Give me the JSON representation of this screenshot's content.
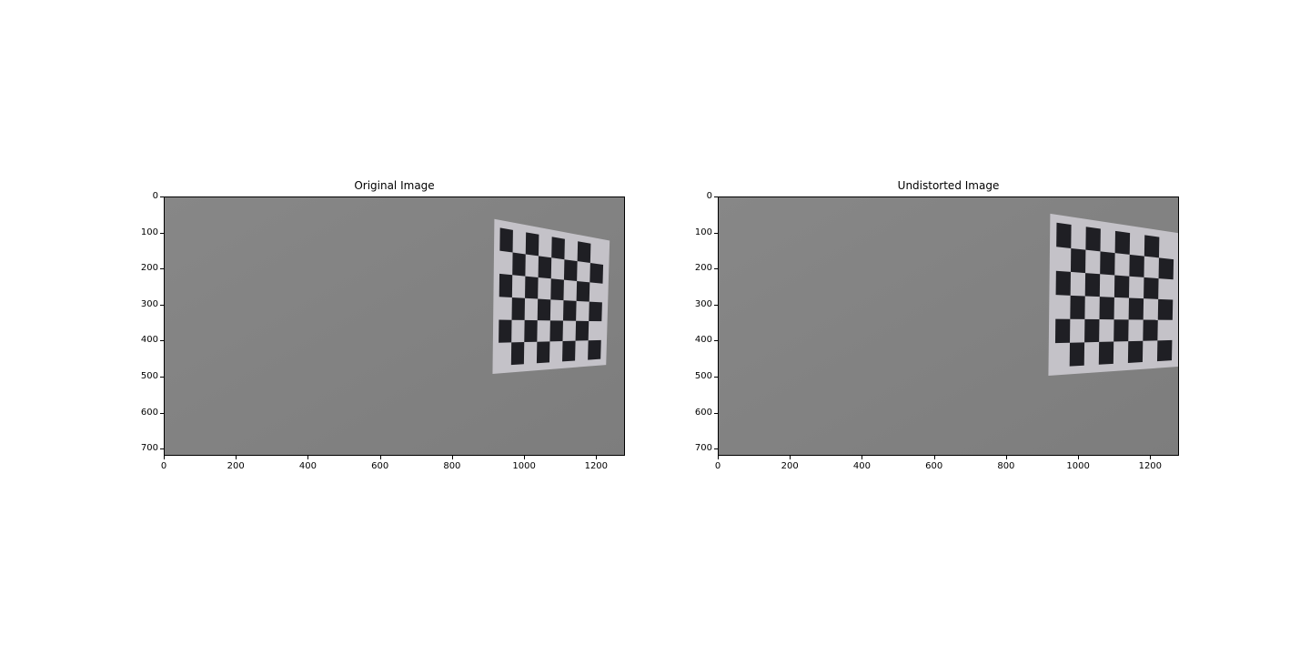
{
  "figure": {
    "panels": [
      {
        "title": "Original Image",
        "image_desc": "checkerboard",
        "board": [
          [
            915,
            60
          ],
          [
            1235,
            120
          ],
          [
            1225,
            465
          ],
          [
            910,
            490
          ]
        ]
      },
      {
        "title": "Undistorted Image",
        "image_desc": "checkerboard",
        "board": [
          [
            920,
            45
          ],
          [
            1282,
            100
          ],
          [
            1275,
            470
          ],
          [
            915,
            495
          ]
        ]
      }
    ],
    "x_ticks": [
      "0",
      "200",
      "400",
      "600",
      "800",
      "1000",
      "1200"
    ],
    "y_ticks": [
      "0",
      "100",
      "200",
      "300",
      "400",
      "500",
      "600",
      "700"
    ],
    "x_range": [
      0,
      1280
    ],
    "y_range": [
      0,
      720
    ],
    "colors": {
      "wall": "#878787",
      "wall_dark": "#7d7d7d",
      "paper": "#c4c2c8",
      "square": "#1f1f24"
    },
    "board_grid": {
      "cols": 8,
      "rows": 6
    }
  }
}
